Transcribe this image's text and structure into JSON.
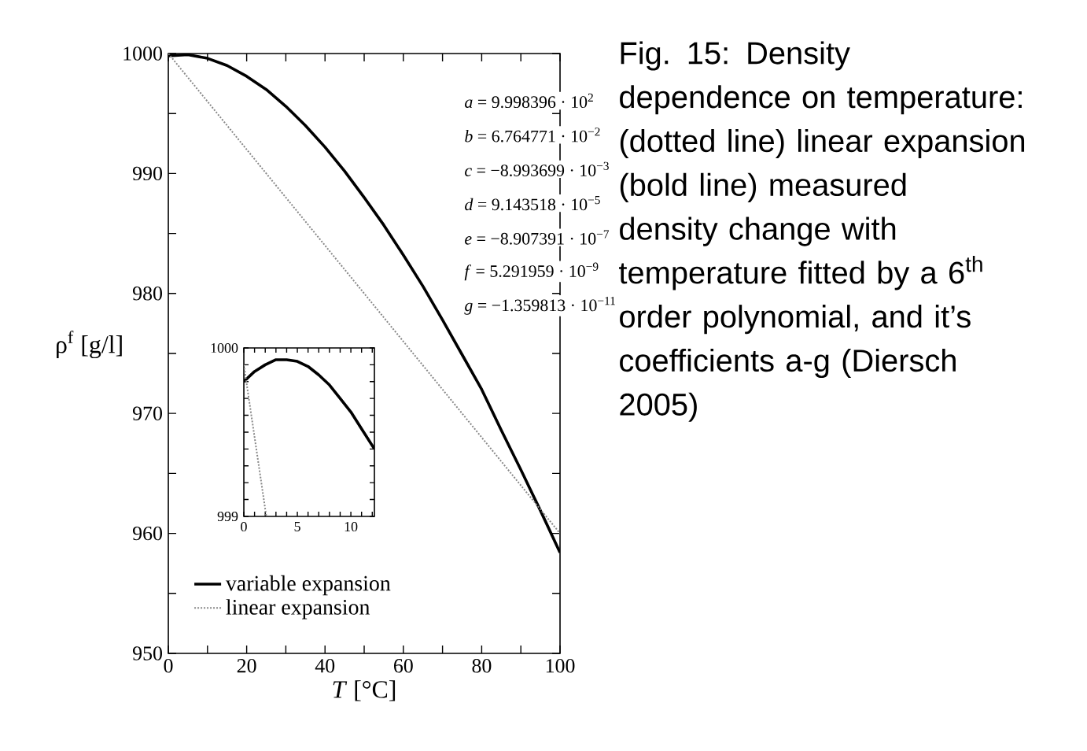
{
  "chart_data": [
    {
      "type": "line",
      "xlabel": "*T* [°C]",
      "ylabel": "ρ$^{f}$ [g/l]",
      "xlim": [
        0,
        100
      ],
      "ylim": [
        950,
        1000
      ],
      "xticks": [
        0,
        {
          "value": 10,
          "label": null
        },
        20,
        {
          "value": 30,
          "label": null
        },
        40,
        {
          "value": 50,
          "label": null
        },
        60,
        {
          "value": 70,
          "label": null
        },
        80,
        {
          "value": 90,
          "label": null
        },
        100
      ],
      "yticks": [
        950,
        {
          "value": 955,
          "label": null
        },
        960,
        {
          "value": 965,
          "label": null
        },
        970,
        {
          "value": 975,
          "label": null
        },
        980,
        {
          "value": 985,
          "label": null
        },
        990,
        {
          "value": 995,
          "label": null
        },
        1000
      ],
      "legend": "bottom left",
      "series": [
        {
          "name": "variable expansion",
          "color": "#000000",
          "line_style": "solid",
          "x": [
            0,
            5,
            10,
            15,
            20,
            25,
            30,
            35,
            40,
            45,
            50,
            55,
            60,
            65,
            70,
            75,
            80,
            85,
            90,
            95,
            100
          ],
          "values": [
            999.8,
            999.9,
            999.6,
            999.0,
            998.1,
            997.0,
            995.6,
            994.0,
            992.2,
            990.2,
            988.0,
            985.7,
            983.2,
            980.6,
            977.8,
            974.9,
            972.0,
            968.6,
            965.3,
            961.9,
            958.4
          ]
        },
        {
          "name": "linear expansion",
          "color": "#888888",
          "line_style": "dotted",
          "x": [
            0,
            100
          ],
          "values": [
            1000,
            960
          ]
        }
      ],
      "annotations": [
        "*a* = 9.998396 · 10$^{2}$",
        "*b* = 6.764771 · 10$^{−2}$",
        "*c* = −8.993699 · 10$^{−3}$",
        "*d* = 9.143518 · 10$^{−5}$",
        "*e* = −8.907391 · 10$^{−7}$",
        "*f* = 5.291959 · 10$^{−9}$",
        "*g* = −1.359813 · 10$^{−11}$",
        "Fig. 15: Density dependence on temperature: (dotted line) linear expansion (bold line) measured density change with temperature fitted by a 6$^{th}$ order polynomial, and it’s coefficients a-g (Diersch 2005)"
      ]
    },
    {
      "type": "line",
      "xlim": [
        0,
        12.2
      ],
      "ylim": [
        999,
        1000
      ],
      "xticks": [
        0,
        {
          "value": 1,
          "label": null
        },
        {
          "value": 2,
          "label": null
        },
        {
          "value": 3,
          "label": null
        },
        {
          "value": 4,
          "label": null
        },
        5,
        {
          "value": 6,
          "label": null
        },
        {
          "value": 7,
          "label": null
        },
        {
          "value": 8,
          "label": null
        },
        {
          "value": 9,
          "label": null
        },
        10,
        {
          "value": 11,
          "label": null
        },
        {
          "value": 12,
          "label": null
        }
      ],
      "yticks": [
        999,
        {
          "value": 999.1,
          "label": null
        },
        {
          "value": 999.2,
          "label": null
        },
        {
          "value": 999.3,
          "label": null
        },
        {
          "value": 999.4,
          "label": null
        },
        {
          "value": 999.5,
          "label": null
        },
        {
          "value": 999.6,
          "label": null
        },
        {
          "value": 999.7,
          "label": null
        },
        {
          "value": 999.8,
          "label": null
        },
        {
          "value": 999.9,
          "label": null
        },
        1000
      ],
      "series": [
        {
          "color": "#000000",
          "line_style": "solid",
          "x": [
            0,
            1,
            2,
            3,
            4,
            5,
            6,
            7,
            8,
            9,
            10,
            11,
            12.2
          ],
          "values": [
            999.8,
            999.86,
            999.9,
            999.93,
            999.93,
            999.92,
            999.89,
            999.84,
            999.78,
            999.7,
            999.62,
            999.52,
            999.4
          ]
        },
        {
          "color": "#888888",
          "line_style": "dotted",
          "x": [
            0,
            2.1
          ],
          "values": [
            999.9,
            999.0
          ]
        }
      ]
    }
  ]
}
